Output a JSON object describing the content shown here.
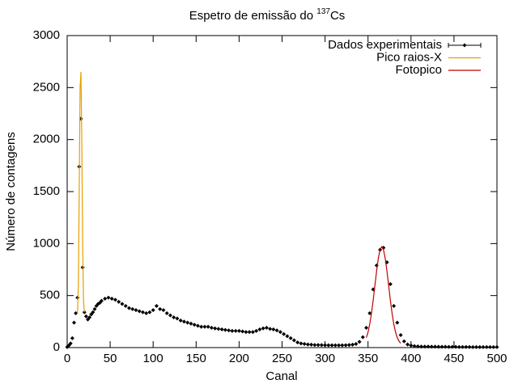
{
  "chart_data": {
    "type": "line",
    "title": {
      "text": "Espetro de emissão do ",
      "superscript": "137",
      "suffix": "Cs"
    },
    "x_label": "Canal",
    "y_label": "Número de contagens",
    "xlim": [
      0,
      500
    ],
    "ylim": [
      0,
      3000
    ],
    "xticks": [
      0,
      50,
      100,
      150,
      200,
      250,
      300,
      350,
      400,
      450,
      500
    ],
    "yticks": [
      0,
      500,
      1000,
      1500,
      2000,
      2500,
      3000
    ],
    "grid": false,
    "legend": "top-right",
    "series": [
      {
        "name": "Dados experimentais",
        "color": "#000000",
        "style": "points",
        "x": [
          0,
          2,
          4,
          6,
          8,
          10,
          12,
          14,
          16,
          18,
          20,
          22,
          24,
          26,
          28,
          30,
          32,
          34,
          36,
          38,
          40,
          44,
          48,
          52,
          56,
          60,
          64,
          68,
          72,
          76,
          80,
          84,
          88,
          92,
          96,
          100,
          104,
          108,
          112,
          116,
          120,
          124,
          128,
          132,
          136,
          140,
          144,
          148,
          152,
          156,
          160,
          164,
          168,
          172,
          176,
          180,
          184,
          188,
          192,
          196,
          200,
          204,
          208,
          212,
          216,
          220,
          224,
          228,
          232,
          236,
          240,
          244,
          248,
          252,
          256,
          260,
          264,
          268,
          272,
          276,
          280,
          284,
          288,
          292,
          296,
          300,
          304,
          308,
          312,
          316,
          320,
          324,
          328,
          332,
          336,
          340,
          344,
          348,
          352,
          356,
          360,
          364,
          368,
          372,
          376,
          380,
          384,
          388,
          392,
          396,
          400,
          404,
          408,
          412,
          416,
          420,
          424,
          428,
          432,
          436,
          440,
          444,
          448,
          452,
          456,
          460,
          464,
          468,
          472,
          476,
          480,
          484,
          488,
          492,
          496,
          500
        ],
        "values": [
          5,
          20,
          40,
          90,
          240,
          330,
          480,
          1740,
          2200,
          770,
          340,
          300,
          270,
          290,
          320,
          340,
          370,
          400,
          420,
          430,
          450,
          470,
          480,
          470,
          460,
          440,
          420,
          400,
          380,
          370,
          360,
          350,
          340,
          330,
          340,
          360,
          400,
          370,
          360,
          330,
          310,
          290,
          280,
          260,
          250,
          240,
          230,
          220,
          210,
          200,
          200,
          200,
          190,
          185,
          180,
          175,
          170,
          165,
          160,
          160,
          160,
          155,
          150,
          150,
          150,
          160,
          175,
          185,
          190,
          180,
          175,
          165,
          150,
          130,
          110,
          90,
          70,
          50,
          40,
          35,
          30,
          28,
          25,
          25,
          24,
          23,
          22,
          22,
          22,
          22,
          22,
          23,
          25,
          28,
          35,
          55,
          100,
          190,
          330,
          560,
          790,
          940,
          960,
          820,
          610,
          400,
          240,
          120,
          60,
          30,
          20,
          15,
          12,
          10,
          10,
          10,
          9,
          9,
          8,
          8,
          8,
          7,
          7,
          7,
          6,
          6,
          6,
          6,
          5,
          5,
          5,
          5,
          5,
          5,
          5,
          5
        ]
      },
      {
        "name": "Pico raios-X",
        "color": "#e69f00",
        "style": "line",
        "x": [
          12,
          13,
          14,
          15,
          16,
          17,
          18,
          19,
          20
        ],
        "values": [
          330,
          600,
          1500,
          2500,
          2650,
          2000,
          1000,
          450,
          340
        ]
      },
      {
        "name": "Fotopico",
        "color": "#c00000",
        "style": "line",
        "x": [
          348,
          350,
          352,
          354,
          356,
          358,
          360,
          362,
          364,
          366,
          368,
          370,
          372,
          374,
          376,
          378,
          380,
          382,
          384,
          386,
          388
        ],
        "values": [
          96,
          148,
          225,
          328,
          455,
          597,
          737,
          858,
          941,
          970,
          941,
          858,
          737,
          597,
          455,
          328,
          225,
          148,
          96,
          62,
          42
        ]
      }
    ]
  }
}
